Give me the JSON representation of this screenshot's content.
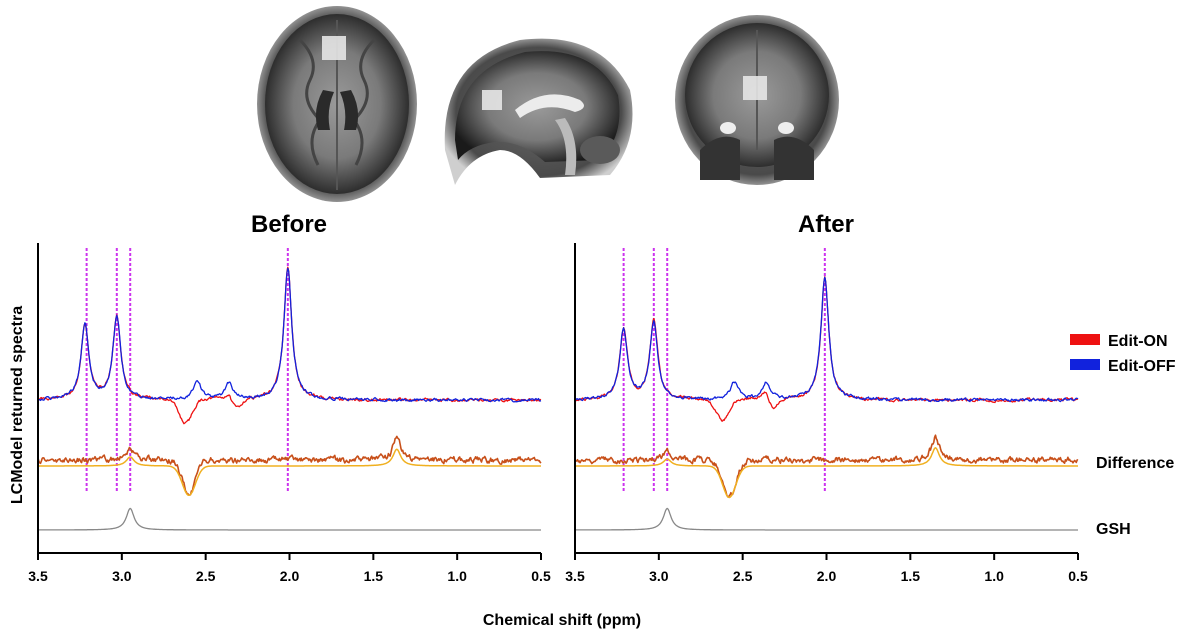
{
  "chart_data": {
    "type": "line",
    "xlabel": "Chemical shift (ppm)",
    "ylabel": "LCModel returned spectra",
    "xlim": [
      3.5,
      0.5
    ],
    "x_reversed": true,
    "xticks": [
      "3.5",
      "3.0",
      "2.5",
      "2.0",
      "1.5",
      "1.0",
      "0.5"
    ],
    "reference_lines_ppm": [
      3.21,
      3.03,
      2.95,
      2.01
    ],
    "reference_line_color": "#cc33ee",
    "legend": [
      {
        "label": "Edit-ON",
        "color": "#ee1111"
      },
      {
        "label": "Edit-OFF",
        "color": "#1122dd"
      }
    ],
    "trace_labels": {
      "difference": "Difference",
      "gsh": "GSH"
    },
    "colors": {
      "difference_data": "#c8501a",
      "difference_fit": "#f0b020",
      "gsh": "#888888"
    },
    "panels": [
      {
        "title": "Before",
        "series": [
          {
            "name": "Edit-ON",
            "peaks": [
              {
                "x": 3.22,
                "h": 0.55
              },
              {
                "x": 3.03,
                "h": 0.62
              },
              {
                "x": 2.01,
                "h": 0.98
              },
              {
                "x": 2.36,
                "h": 0.1
              }
            ],
            "dips": [
              {
                "x": 2.62,
                "d": 0.18
              },
              {
                "x": 2.33,
                "d": 0.1
              }
            ]
          },
          {
            "name": "Edit-OFF",
            "peaks": [
              {
                "x": 3.22,
                "h": 0.55
              },
              {
                "x": 3.03,
                "h": 0.62
              },
              {
                "x": 2.01,
                "h": 0.98
              },
              {
                "x": 2.55,
                "h": 0.14
              },
              {
                "x": 2.36,
                "h": 0.12
              }
            ]
          },
          {
            "name": "Difference data",
            "peaks": [
              {
                "x": 2.95,
                "h": 0.15
              },
              {
                "x": 1.36,
                "h": 0.28
              }
            ],
            "dips": [
              {
                "x": 2.6,
                "d": 0.45
              }
            ]
          },
          {
            "name": "Difference fit",
            "peaks": [
              {
                "x": 2.95,
                "h": 0.13
              },
              {
                "x": 1.36,
                "h": 0.24
              }
            ],
            "dips": [
              {
                "x": 2.6,
                "d": 0.42
              }
            ]
          },
          {
            "name": "GSH",
            "peaks": [
              {
                "x": 2.95,
                "h": 0.3
              }
            ]
          }
        ]
      },
      {
        "title": "After",
        "series": [
          {
            "name": "Edit-ON",
            "peaks": [
              {
                "x": 3.21,
                "h": 0.52
              },
              {
                "x": 3.03,
                "h": 0.58
              },
              {
                "x": 2.01,
                "h": 0.9
              },
              {
                "x": 2.36,
                "h": 0.12
              }
            ],
            "dips": [
              {
                "x": 2.62,
                "d": 0.16
              },
              {
                "x": 2.33,
                "d": 0.1
              }
            ]
          },
          {
            "name": "Edit-OFF",
            "peaks": [
              {
                "x": 3.21,
                "h": 0.52
              },
              {
                "x": 3.03,
                "h": 0.58
              },
              {
                "x": 2.01,
                "h": 0.9
              },
              {
                "x": 2.55,
                "h": 0.13
              },
              {
                "x": 2.36,
                "h": 0.12
              }
            ]
          },
          {
            "name": "Difference data",
            "peaks": [
              {
                "x": 2.95,
                "h": 0.12
              },
              {
                "x": 1.35,
                "h": 0.3
              }
            ],
            "dips": [
              {
                "x": 2.58,
                "d": 0.5
              }
            ]
          },
          {
            "name": "Difference fit",
            "peaks": [
              {
                "x": 2.95,
                "h": 0.1
              },
              {
                "x": 1.35,
                "h": 0.26
              }
            ],
            "dips": [
              {
                "x": 2.58,
                "d": 0.45
              }
            ]
          },
          {
            "name": "GSH",
            "peaks": [
              {
                "x": 2.95,
                "h": 0.3
              }
            ]
          }
        ]
      }
    ],
    "images": [
      {
        "view": "axial",
        "voxel_shown": true
      },
      {
        "view": "sagittal",
        "voxel_shown": true
      },
      {
        "view": "coronal",
        "voxel_shown": true
      }
    ]
  }
}
